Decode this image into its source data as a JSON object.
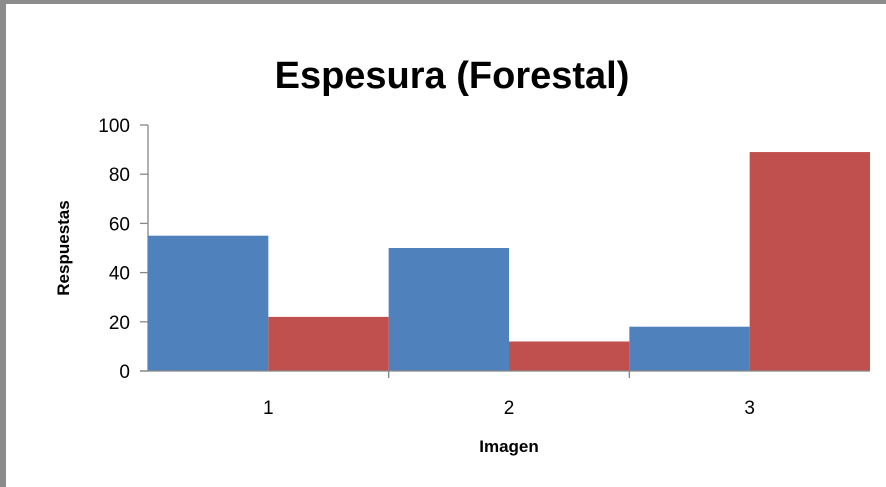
{
  "chart_data": {
    "type": "bar",
    "title": "Espesura (Forestal)",
    "xlabel": "Imagen",
    "ylabel": "Respuestas",
    "categories": [
      "1",
      "2",
      "3"
    ],
    "series": [
      {
        "values": [
          55,
          50,
          18
        ]
      },
      {
        "values": [
          22,
          12,
          89
        ]
      }
    ],
    "colors": [
      "#4f81bd",
      "#c0504d"
    ],
    "ylim": [
      0,
      100
    ],
    "yticks": [
      "0",
      "20",
      "40",
      "60",
      "80",
      "100"
    ],
    "grid": false,
    "legend": "none"
  }
}
